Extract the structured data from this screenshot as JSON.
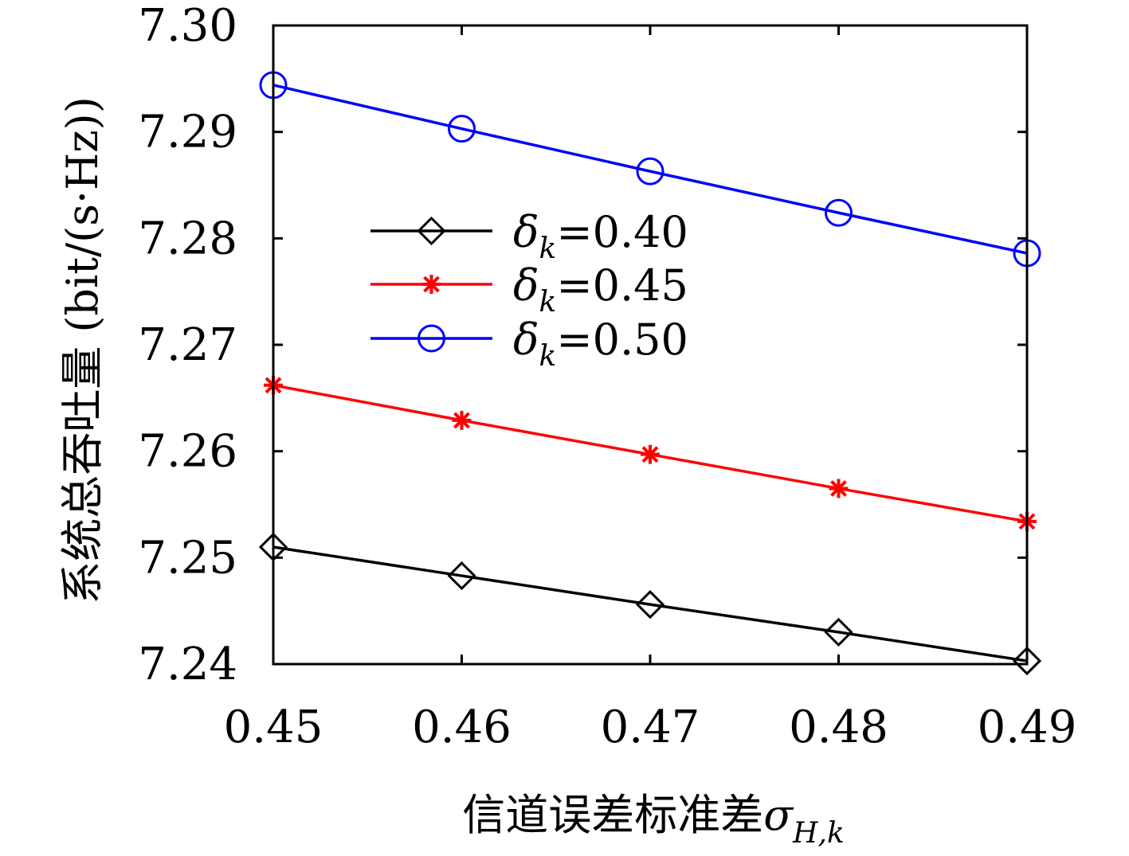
{
  "chart_data": {
    "type": "line",
    "xlabel": "信道误差标准差",
    "xlabel_symbol": "σ",
    "xlabel_subscript": "H,k",
    "ylabel": "系统总吞吐量 (bit/(s·Hz))",
    "x": [
      0.45,
      0.46,
      0.47,
      0.48,
      0.49
    ],
    "xlim": [
      0.45,
      0.49
    ],
    "ylim": [
      7.24,
      7.3
    ],
    "xticks": [
      "0.45",
      "0.46",
      "0.47",
      "0.48",
      "0.49"
    ],
    "yticks": [
      "7.24",
      "7.25",
      "7.26",
      "7.27",
      "7.28",
      "7.29",
      "7.30"
    ],
    "grid": false,
    "legend_position": "center-left",
    "series": [
      {
        "name": "δk=0.40",
        "symbol": "δ",
        "sub": "k",
        "label_value": "=0.40",
        "color": "#000000",
        "marker": "diamond",
        "values": [
          7.251,
          7.2483,
          7.2456,
          7.243,
          7.2403
        ]
      },
      {
        "name": "δk=0.45",
        "symbol": "δ",
        "sub": "k",
        "label_value": "=0.45",
        "color": "#ff0000",
        "marker": "asterisk",
        "values": [
          7.2662,
          7.2629,
          7.2597,
          7.2565,
          7.2534
        ]
      },
      {
        "name": "δk=0.50",
        "symbol": "δ",
        "sub": "k",
        "label_value": "=0.50",
        "color": "#0000ff",
        "marker": "circle",
        "values": [
          7.2944,
          7.2903,
          7.2863,
          7.2824,
          7.2786
        ]
      }
    ]
  }
}
